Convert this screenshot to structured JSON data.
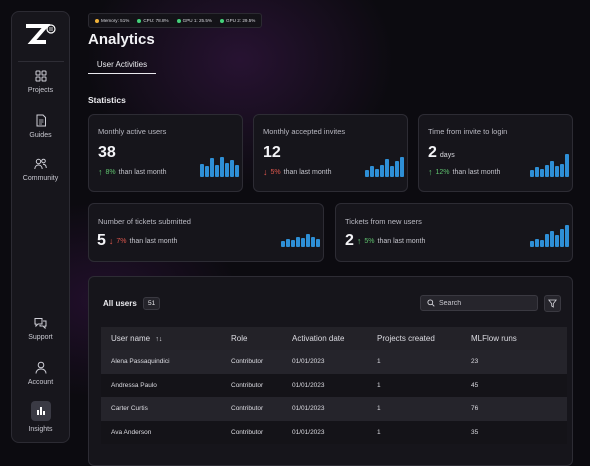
{
  "resources": [
    {
      "label": "Memory: 51%",
      "color": "#f0b23a"
    },
    {
      "label": "CPU: 78.8%",
      "color": "#44d17a"
    },
    {
      "label": "GPU 1: 25.5%",
      "color": "#44d17a"
    },
    {
      "label": "GPU 2: 29.5%",
      "color": "#44d17a"
    }
  ],
  "sidebar": {
    "items": [
      {
        "label": "Projects",
        "icon": "grid-icon"
      },
      {
        "label": "Guides",
        "icon": "document-icon"
      },
      {
        "label": "Community",
        "icon": "people-icon"
      },
      {
        "label": "Support",
        "icon": "support-chat-icon"
      },
      {
        "label": "Account",
        "icon": "user-icon"
      },
      {
        "label": "Insights",
        "icon": "bar-chart-icon"
      }
    ]
  },
  "page": {
    "title": "Analytics",
    "tab": "User Activities",
    "section_title": "Statistics"
  },
  "stats": [
    {
      "title": "Monthly active users",
      "value": "38",
      "unit": "",
      "direction": "up",
      "pct": "8%",
      "suffix": "than last month",
      "bars": [
        0.55,
        0.45,
        0.8,
        0.5,
        0.85,
        0.6,
        0.7,
        0.5
      ]
    },
    {
      "title": "Monthly accepted invites",
      "value": "12",
      "unit": "",
      "direction": "down",
      "pct": "5%",
      "suffix": "than last month",
      "bars": [
        0.3,
        0.45,
        0.35,
        0.5,
        0.75,
        0.45,
        0.65,
        0.85
      ]
    },
    {
      "title": "Time from invite to login",
      "value": "2",
      "unit": "days",
      "direction": "up",
      "pct": "12%",
      "suffix": "than last month",
      "bars": [
        0.3,
        0.4,
        0.35,
        0.5,
        0.65,
        0.45,
        0.55,
        0.95
      ]
    },
    {
      "title": "Number of tickets submitted",
      "value": "5",
      "unit": "",
      "direction": "down",
      "pct": "7%",
      "suffix": "than last month",
      "bars": [
        0.35,
        0.5,
        0.45,
        0.65,
        0.55,
        0.8,
        0.6,
        0.5
      ]
    },
    {
      "title": "Tickets from new users",
      "value": "2",
      "unit": "",
      "direction": "up",
      "pct": "5%",
      "suffix": "than last month",
      "bars": [
        0.25,
        0.35,
        0.3,
        0.55,
        0.7,
        0.5,
        0.8,
        0.95
      ]
    }
  ],
  "users": {
    "title": "All users",
    "count": "51",
    "search_placeholder": "Search",
    "columns": [
      "User name",
      "Role",
      "Activation date",
      "Projects created",
      "MLFlow runs"
    ],
    "rows": [
      [
        "Alena Passaquindici",
        "Contributor",
        "01/01/2023",
        "1",
        "23"
      ],
      [
        "Andressa Paulo",
        "Contributor",
        "01/01/2023",
        "1",
        "45"
      ],
      [
        "Carter Curtis",
        "Contributor",
        "01/01/2023",
        "1",
        "76"
      ],
      [
        "Ava Anderson",
        "Contributor",
        "01/01/2023",
        "1",
        "35"
      ]
    ]
  }
}
